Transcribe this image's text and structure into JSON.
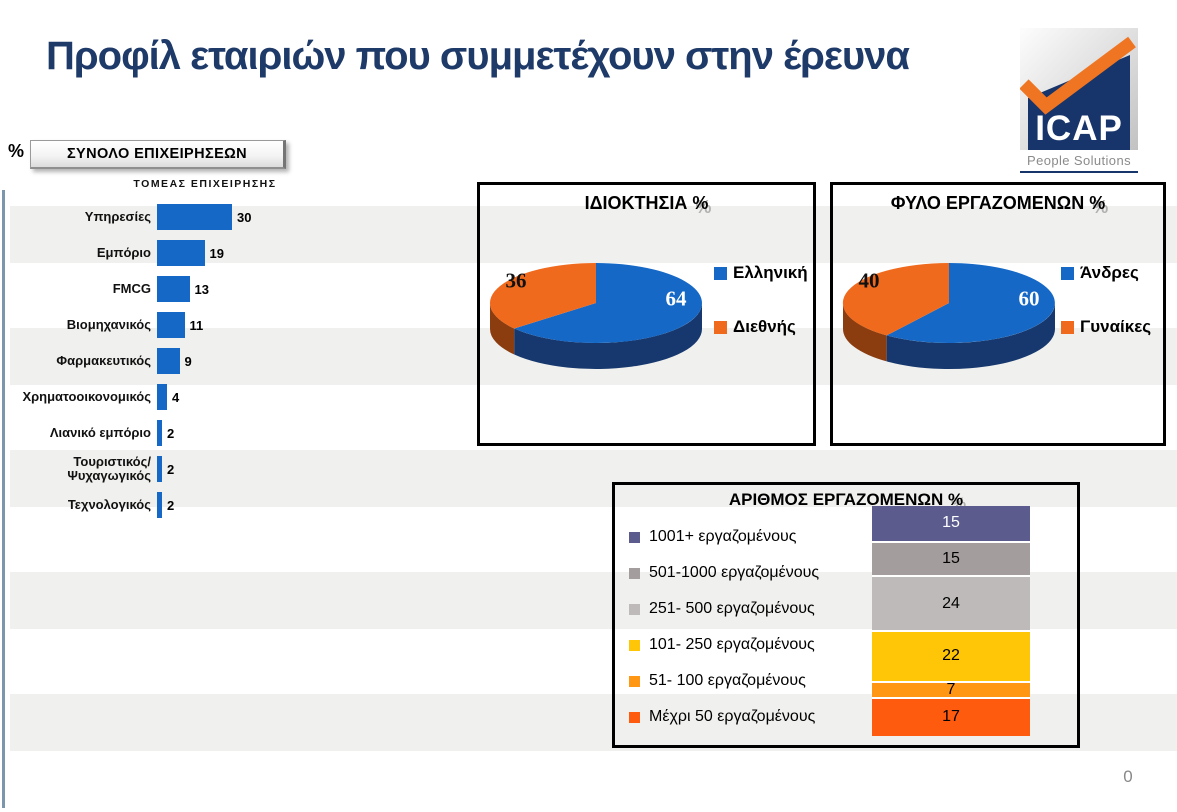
{
  "slide": {
    "title": "Προφίλ εταιριών που συμμετέχουν στην έρευνα",
    "percent_label": "%",
    "button_label": "ΣΥΝΟΛΟ ΕΠΙΧΕΙΡΗΣΕΩΝ",
    "page_number": "0"
  },
  "logo": {
    "name": "ICAP",
    "tagline": "People Solutions"
  },
  "colors": {
    "title_navy": "#1e3a68",
    "bar_blue": "#1568c6",
    "pie_orange": "#f06a1d",
    "stripe_gray": "#f0f0ee",
    "left_rule": "#7d96ae"
  },
  "chart_data": [
    {
      "id": "sector",
      "type": "bar",
      "orientation": "horizontal",
      "title": "ΤΟΜΕΑΣ ΕΠΙΧΕΙΡΗΣΗΣ",
      "unit": "%",
      "categories": [
        "Υπηρεσίες",
        "Εμπόριο",
        "FMCG",
        "Βιομηχανικός",
        "Φαρμακευτικός",
        "Χρηματοοικονομικός",
        "Λιανικό εμπόριο",
        "Τουριστικός/\nΨυχαγωγικός",
        "Τεχνολογικός"
      ],
      "values": [
        30,
        19,
        13,
        11,
        9,
        4,
        2,
        2,
        2
      ],
      "xlim": [
        0,
        30
      ],
      "bar_color": "#1568c6"
    },
    {
      "id": "ownership",
      "type": "pie",
      "title": "ΙΔΙΟΚΤΗΣΙΑ %",
      "labels": [
        "Ελληνική",
        "Διεθνής"
      ],
      "values": [
        64,
        36
      ],
      "colors": [
        "#1568c6",
        "#f06a1d"
      ],
      "side_colors": [
        "#16386e",
        "#8c3d10"
      ],
      "legend_position": "right",
      "style": "3d"
    },
    {
      "id": "gender",
      "type": "pie",
      "title": "ΦΥΛΟ ΕΡΓΑΖΟΜΕΝΩΝ %",
      "labels": [
        "Άνδρες",
        "Γυναίκες"
      ],
      "values": [
        60,
        40
      ],
      "colors": [
        "#1568c6",
        "#f06a1d"
      ],
      "side_colors": [
        "#16386e",
        "#8c3d10"
      ],
      "legend_position": "right",
      "style": "3d"
    },
    {
      "id": "employees",
      "type": "bar",
      "subtype": "stacked-column-100",
      "title": "ΑΡΙΘΜΟΣ ΕΡΓΑΖΟΜΕΝΩΝ %",
      "categories": [
        "1001+ εργαζομένους",
        "501-1000 εργαζομένους",
        "251- 500 εργαζομένους",
        "101- 250 εργαζομένους",
        "51- 100 εργαζομένους",
        "Μέχρι 50 εργαζομένους"
      ],
      "values": [
        15,
        15,
        24,
        22,
        7,
        17
      ],
      "colors": [
        "#5b5b8e",
        "#a49d9d",
        "#bfbaba",
        "#ffc607",
        "#ff9715",
        "#ff5b0f"
      ],
      "value_text_colors": [
        "#ffffff",
        "#000000",
        "#000000",
        "#000000",
        "#000000",
        "#000000"
      ],
      "legend_position": "left"
    }
  ]
}
